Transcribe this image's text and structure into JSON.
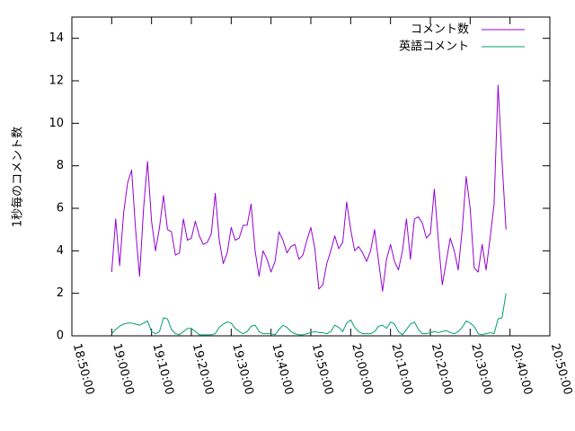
{
  "chart_data": {
    "type": "line",
    "title": "",
    "xlabel": "",
    "ylabel": "1秒毎のコメント数",
    "xlim": [
      "18:50:00",
      "20:50:00"
    ],
    "ylim": [
      0,
      15
    ],
    "xticks": [
      "18:50:00",
      "19:00:00",
      "19:10:00",
      "19:20:00",
      "19:30:00",
      "19:40:00",
      "19:50:00",
      "20:00:00",
      "20:10:00",
      "20:20:00",
      "20:30:00",
      "20:40:00",
      "20:50:00"
    ],
    "yticks": [
      "0",
      "2",
      "4",
      "6",
      "8",
      "10",
      "12",
      "14"
    ],
    "grid": false,
    "legend_position": "top-right",
    "sample_interval_seconds": 60,
    "x_start": "19:00:00",
    "series": [
      {
        "name": "コメント数",
        "color": "#9400d3",
        "values": [
          3.0,
          5.5,
          3.3,
          5.8,
          7.2,
          7.8,
          5.0,
          2.8,
          6.0,
          8.2,
          5.4,
          4.0,
          5.1,
          6.6,
          5.0,
          4.9,
          3.8,
          3.9,
          5.5,
          4.5,
          4.6,
          5.4,
          4.7,
          4.3,
          4.4,
          4.8,
          6.7,
          4.5,
          3.4,
          3.9,
          5.1,
          4.5,
          4.6,
          5.2,
          5.2,
          6.2,
          4.0,
          2.8,
          4.0,
          3.6,
          3.0,
          3.5,
          4.9,
          4.5,
          3.9,
          4.2,
          4.3,
          3.6,
          3.8,
          4.5,
          5.1,
          4.1,
          2.2,
          2.4,
          3.4,
          4.0,
          4.7,
          4.1,
          4.4,
          6.3,
          5.0,
          4.0,
          4.2,
          3.9,
          3.5,
          4.0,
          5.0,
          3.5,
          2.1,
          3.6,
          4.3,
          3.5,
          3.1,
          4.0,
          5.5,
          3.6,
          5.5,
          5.6,
          5.3,
          4.6,
          4.8,
          6.9,
          4.5,
          2.4,
          3.5,
          4.6,
          4.0,
          3.1,
          5.0,
          7.5,
          6.0,
          3.2,
          3.0,
          4.3,
          3.1,
          4.6,
          6.2,
          11.8,
          8.2,
          5.0
        ]
      },
      {
        "name": "英語コメント",
        "color": "#009e73",
        "values": [
          0.1,
          0.3,
          0.45,
          0.55,
          0.6,
          0.6,
          0.55,
          0.5,
          0.6,
          0.7,
          0.2,
          0.1,
          0.2,
          0.85,
          0.8,
          0.3,
          0.1,
          0.05,
          0.2,
          0.35,
          0.35,
          0.2,
          0.05,
          0.05,
          0.05,
          0.05,
          0.1,
          0.4,
          0.55,
          0.65,
          0.6,
          0.35,
          0.2,
          0.1,
          0.2,
          0.45,
          0.5,
          0.2,
          0.1,
          0.1,
          0.1,
          0.05,
          0.3,
          0.5,
          0.4,
          0.2,
          0.1,
          0.05,
          0.05,
          0.1,
          0.15,
          0.2,
          0.15,
          0.15,
          0.1,
          0.2,
          0.5,
          0.4,
          0.2,
          0.6,
          0.75,
          0.4,
          0.2,
          0.1,
          0.1,
          0.1,
          0.2,
          0.45,
          0.5,
          0.35,
          0.65,
          0.55,
          0.2,
          0.05,
          0.3,
          0.55,
          0.65,
          0.3,
          0.1,
          0.1,
          0.15,
          0.2,
          0.15,
          0.2,
          0.25,
          0.15,
          0.1,
          0.2,
          0.4,
          0.7,
          0.6,
          0.45,
          0.1,
          0.05,
          0.1,
          0.15,
          0.1,
          0.8,
          0.85,
          2.0
        ]
      }
    ]
  }
}
